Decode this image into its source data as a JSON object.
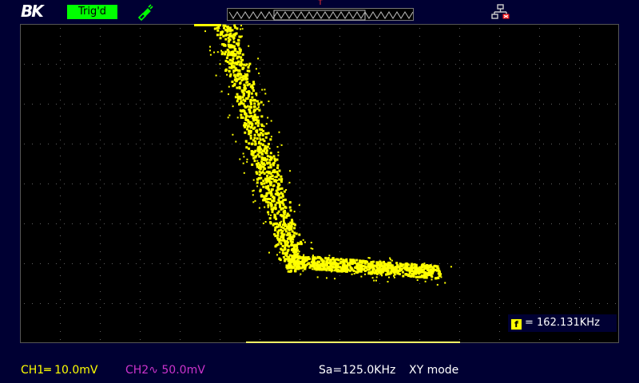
{
  "header": {
    "logo": "BK",
    "trigger_status": "Trig'd",
    "trigger_marker": "T",
    "icons": [
      "probe-icon",
      "lan-disconnected-icon"
    ]
  },
  "colors": {
    "ch1": "#ffff00",
    "ch2": "#cc33cc",
    "trig_status_bg": "#00ff00",
    "background": "#000033"
  },
  "measurements": {
    "frequency": "= 162.131KHz"
  },
  "status_bar": {
    "ch1": "CH1═ 10.0mV",
    "ch2": "CH2∿ 50.0mV",
    "sample_rate": "Sa=125.0KHz",
    "mode": "XY mode"
  }
}
